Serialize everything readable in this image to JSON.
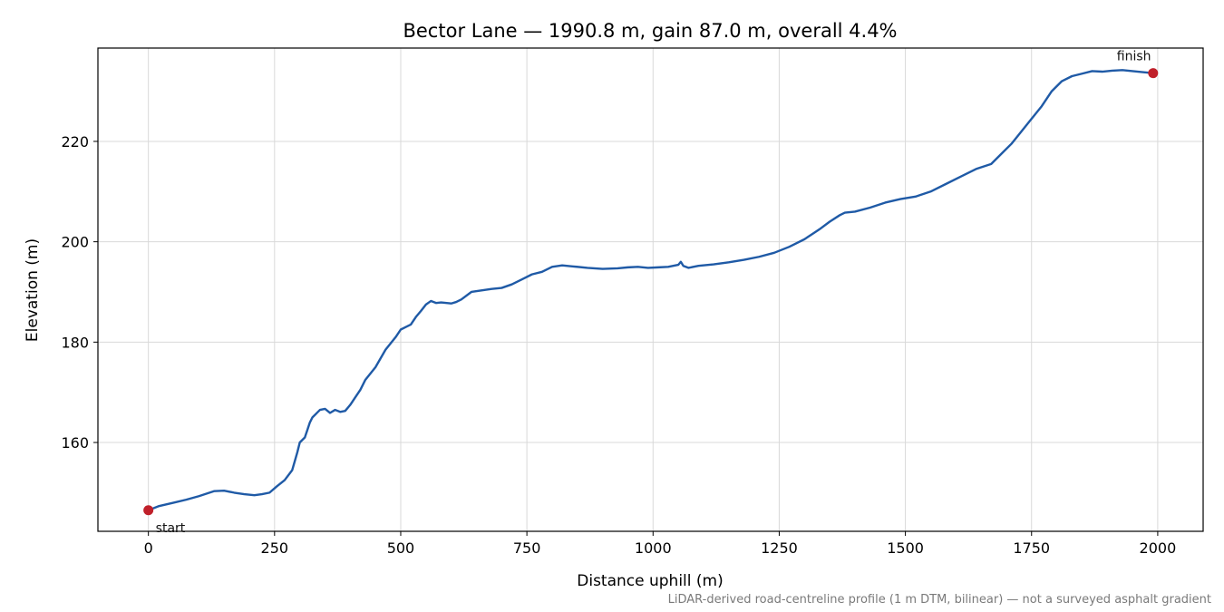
{
  "chart_data": {
    "type": "line",
    "title": "Bector Lane — 1990.8 m, gain 87.0 m, overall 4.4%",
    "xlabel": "Distance uphill (m)",
    "ylabel": "Elevation (m)",
    "xlim": [
      -100,
      2090
    ],
    "ylim": [
      142.3,
      238.6
    ],
    "xticks": [
      0,
      250,
      500,
      750,
      1000,
      1250,
      1500,
      1750,
      2000
    ],
    "yticks": [
      160,
      180,
      200,
      220
    ],
    "grid": true,
    "footnote": "LiDAR-derived road-centreline profile (1 m DTM, bilinear) — not a surveyed asphalt gradient",
    "line_color": "#1f5aa6",
    "marker_color": "#c0202a",
    "series": [
      {
        "x": [
          0,
          20,
          50,
          75,
          100,
          115,
          130,
          150,
          170,
          190,
          210,
          225,
          240,
          255,
          270,
          285,
          295,
          300,
          305,
          310,
          315,
          320,
          325,
          330,
          335,
          340,
          350,
          360,
          370,
          380,
          390,
          400,
          410,
          420,
          430,
          450,
          470,
          490,
          500,
          510,
          520,
          530,
          540,
          550,
          560,
          570,
          580,
          600,
          610,
          620,
          640,
          660,
          680,
          700,
          720,
          740,
          760,
          780,
          790,
          800,
          820,
          840,
          870,
          900,
          930,
          950,
          970,
          990,
          1010,
          1030,
          1050,
          1055,
          1060,
          1070,
          1090,
          1120,
          1150,
          1180,
          1210,
          1240,
          1270,
          1300,
          1330,
          1350,
          1370,
          1380,
          1400,
          1430,
          1460,
          1490,
          1520,
          1550,
          1580,
          1610,
          1640,
          1670,
          1690,
          1710,
          1730,
          1750,
          1770,
          1790,
          1810,
          1830,
          1850,
          1870,
          1890,
          1910,
          1930,
          1950,
          1970,
          1990.8
        ],
        "y": [
          146.5,
          147.3,
          148,
          148.6,
          149.3,
          149.8,
          150.3,
          150.4,
          150,
          149.7,
          149.5,
          149.7,
          150,
          151.3,
          152.5,
          154.5,
          158,
          160,
          160.5,
          161,
          162.5,
          164,
          165,
          165.5,
          166,
          166.5,
          166.7,
          165.9,
          166.5,
          166.1,
          166.3,
          167.5,
          169,
          170.5,
          172.5,
          175,
          178.5,
          181,
          182.5,
          183,
          183.5,
          185,
          186.2,
          187.5,
          188.2,
          187.8,
          187.9,
          187.7,
          188,
          188.5,
          190,
          190.3,
          190.6,
          190.8,
          191.5,
          192.5,
          193.5,
          194,
          194.5,
          195,
          195.3,
          195.1,
          194.8,
          194.6,
          194.7,
          194.9,
          195,
          194.8,
          194.9,
          195,
          195.4,
          196,
          195.2,
          194.8,
          195.2,
          195.5,
          195.9,
          196.4,
          197,
          197.8,
          199,
          200.5,
          202.5,
          204,
          205.3,
          205.8,
          206,
          206.8,
          207.8,
          208.5,
          209,
          210,
          211.5,
          213,
          214.5,
          215.5,
          217.5,
          219.5,
          222,
          224.5,
          227,
          230,
          232,
          233,
          233.5,
          234,
          233.9,
          234.1,
          234.2,
          234,
          233.8,
          233.6
        ]
      }
    ],
    "annotations": [
      {
        "text": "start",
        "x": 0,
        "y": 146.5
      },
      {
        "text": "finish",
        "x": 1990.8,
        "y": 233.6
      }
    ]
  }
}
